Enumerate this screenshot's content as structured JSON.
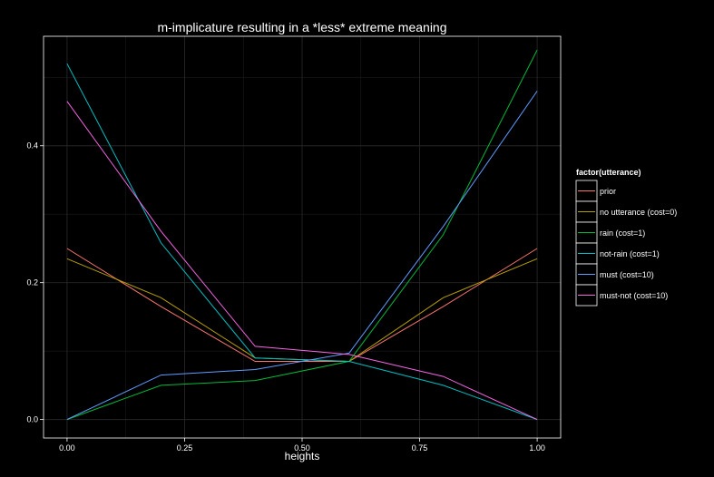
{
  "chart_data": {
    "type": "line",
    "title": "m-implicature resulting in a *less* extreme meaning",
    "xlabel": "heights",
    "ylabel": "",
    "xlim": [
      -0.05,
      1.05
    ],
    "ylim": [
      -0.027,
      0.56
    ],
    "x": [
      0.0,
      0.2,
      0.4,
      0.6,
      0.8,
      1.0
    ],
    "x_ticks": [
      0.0,
      0.25,
      0.5,
      0.75,
      1.0
    ],
    "x_tick_labels": [
      "0.00",
      "0.25",
      "0.50",
      "0.75",
      "1.00"
    ],
    "y_ticks": [
      0.0,
      0.2,
      0.4
    ],
    "y_tick_labels": [
      "0.0",
      "0.2",
      "0.4"
    ],
    "grid": true,
    "legend_title": "factor(utterance)",
    "legend_position": "right",
    "series": [
      {
        "name": "prior",
        "color": "#F8766D",
        "values": [
          0.25,
          0.165,
          0.085,
          0.085,
          0.165,
          0.25
        ]
      },
      {
        "name": "no utterance (cost=0)",
        "color": "#B79F00",
        "values": [
          0.235,
          0.178,
          0.09,
          0.085,
          0.178,
          0.235
        ]
      },
      {
        "name": "rain (cost=1)",
        "color": "#00BA38",
        "values": [
          0.0,
          0.05,
          0.057,
          0.085,
          0.27,
          0.54
        ]
      },
      {
        "name": "not-rain (cost=1)",
        "color": "#00BFC4",
        "values": [
          0.52,
          0.258,
          0.09,
          0.085,
          0.05,
          0.0
        ]
      },
      {
        "name": "must (cost=10)",
        "color": "#619CFF",
        "values": [
          0.0,
          0.065,
          0.073,
          0.097,
          0.282,
          0.48
        ]
      },
      {
        "name": "must-not (cost=10)",
        "color": "#F564E3",
        "values": [
          0.465,
          0.275,
          0.107,
          0.095,
          0.063,
          0.0
        ]
      }
    ]
  }
}
